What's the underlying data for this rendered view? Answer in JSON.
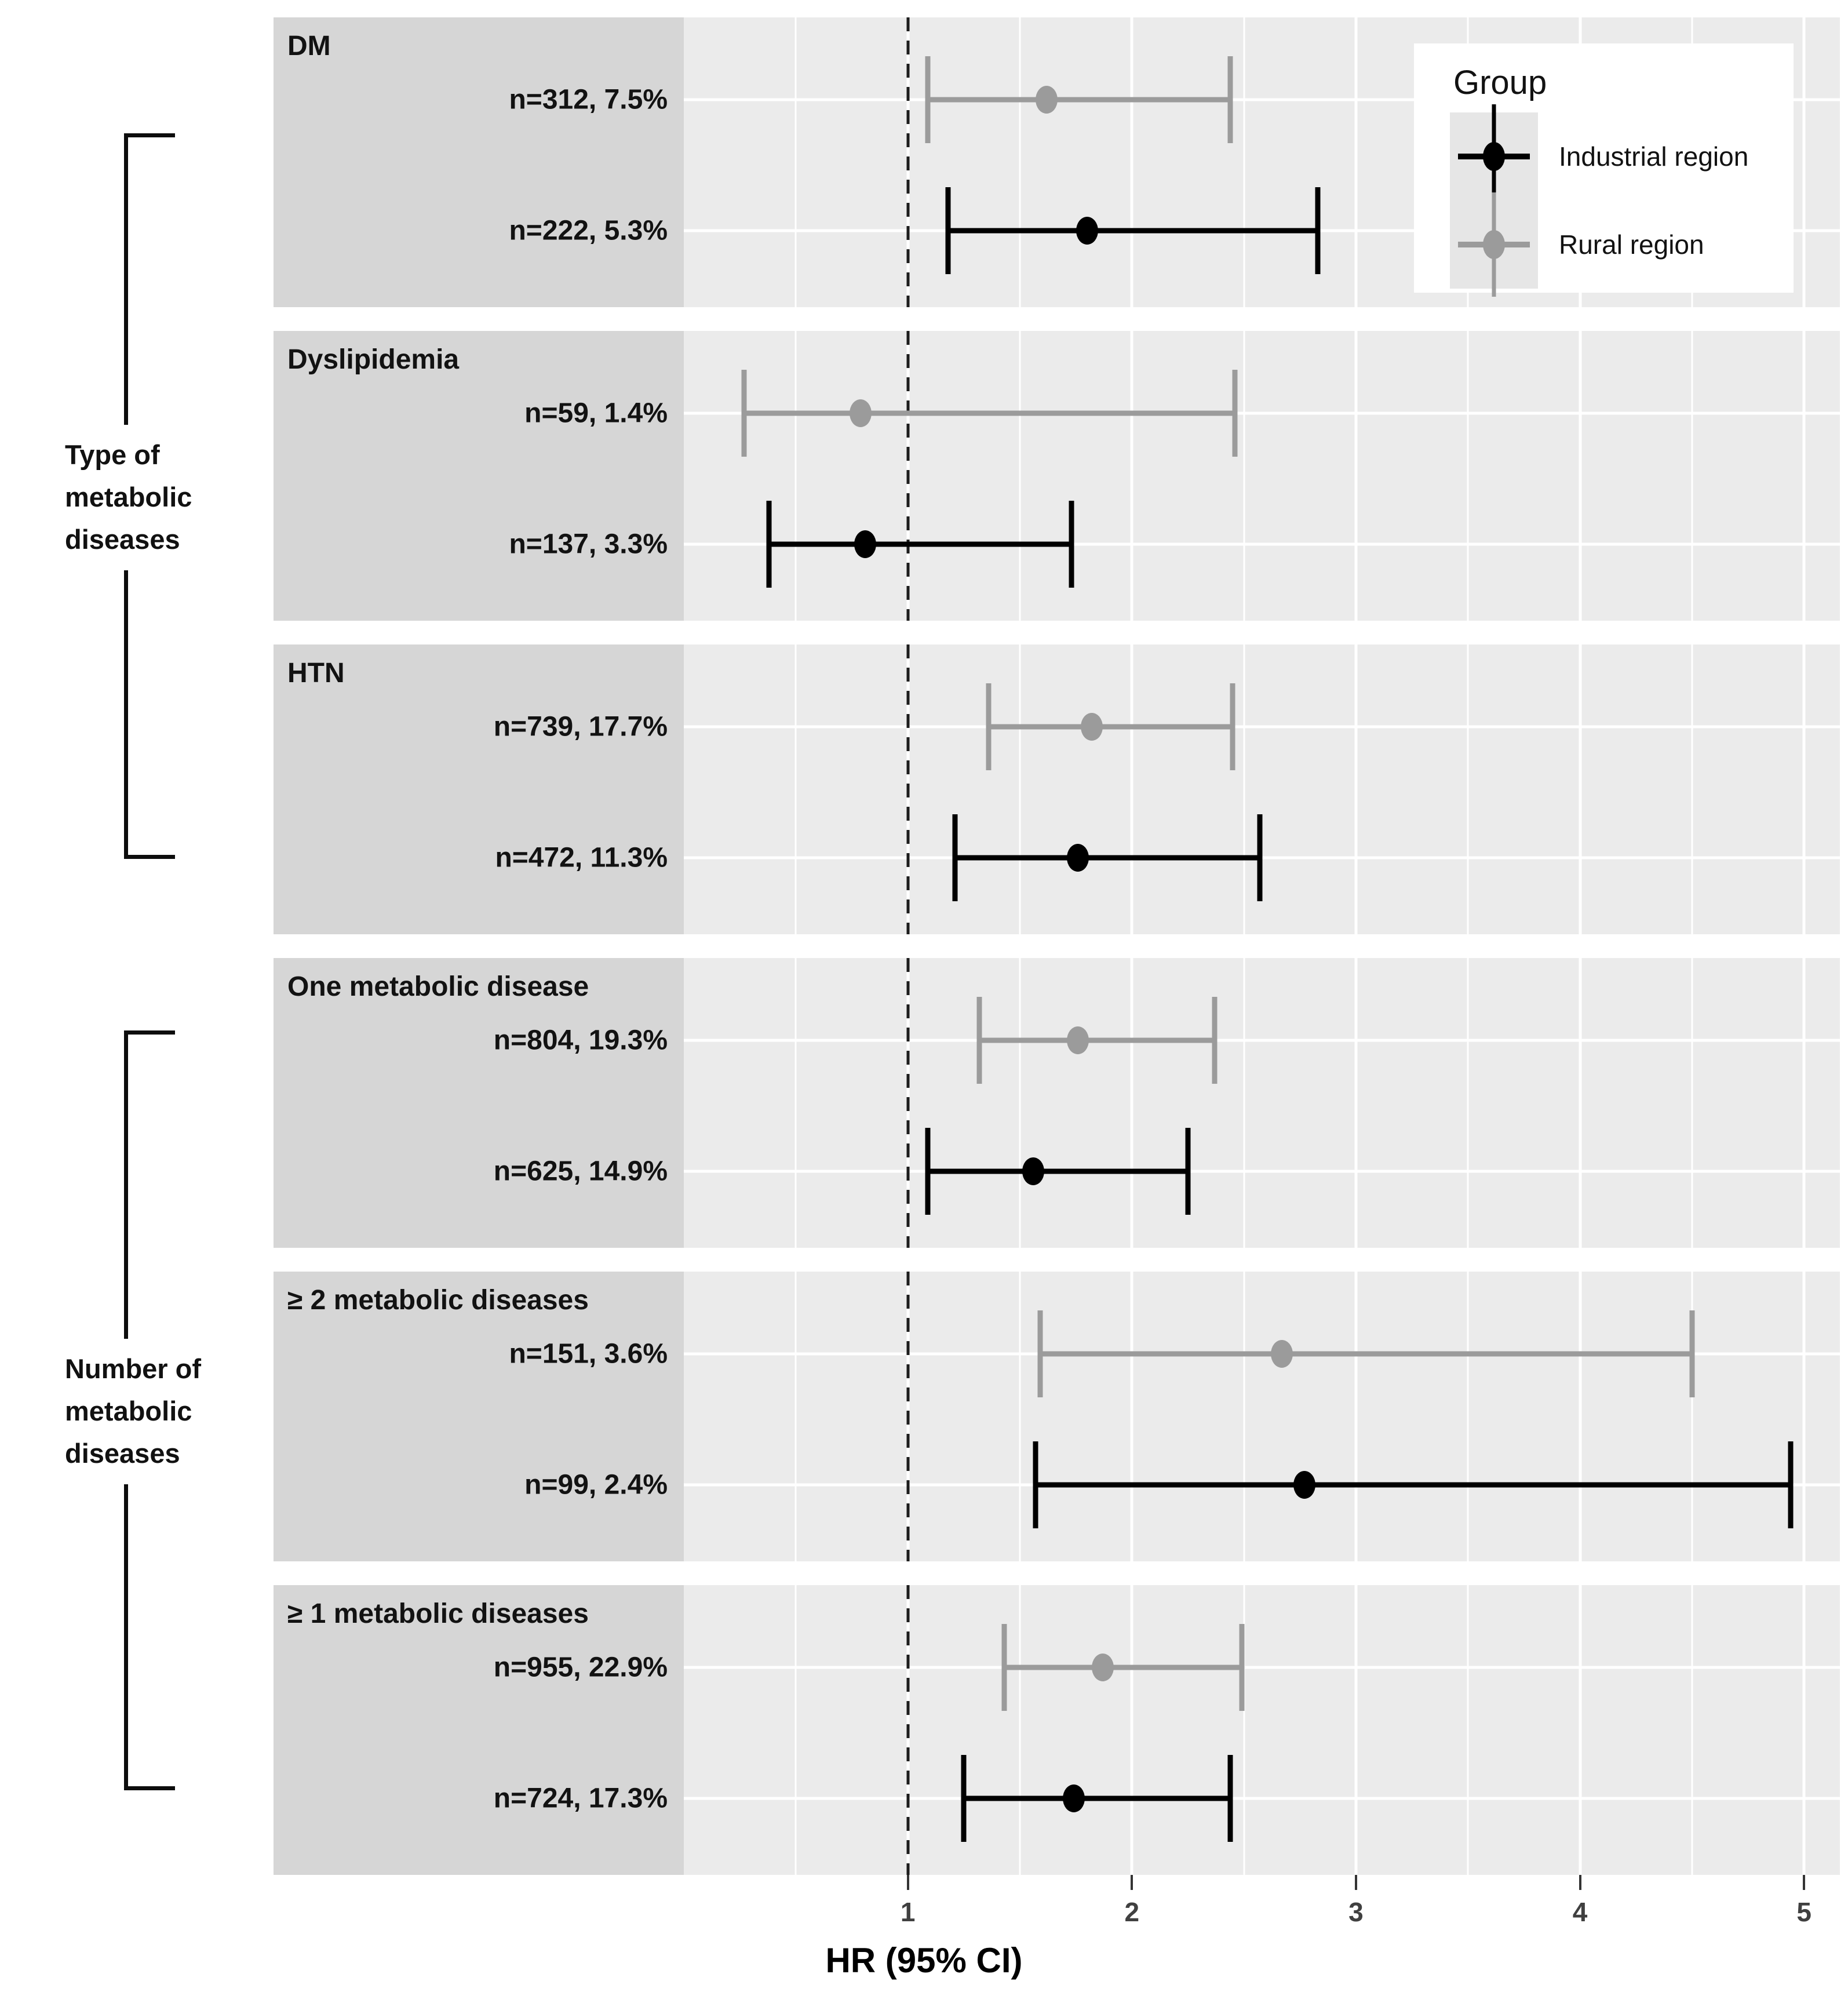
{
  "figure": {
    "legend": {
      "title": "Group",
      "items": [
        {
          "label": "Industrial region",
          "color": "#000000"
        },
        {
          "label": "Rural region",
          "color": "#9b9b9b"
        }
      ]
    },
    "brackets": [
      {
        "label": "Type of metabolic diseases",
        "lines": [
          "Type of",
          "metabolic",
          "diseases"
        ]
      },
      {
        "label": "Number of metabolic diseases",
        "lines": [
          "Number of",
          "metabolic",
          "diseases"
        ]
      }
    ],
    "colors": {
      "industrial": "#000000",
      "rural": "#9b9b9b",
      "panel_background": "#ebebeb",
      "strip_background": "#d6d6d6",
      "gridline": "#ffffff",
      "reference_line": "#1d1d1d"
    }
  },
  "chart_data": {
    "type": "scatter",
    "subtype": "forest-plot",
    "title": "",
    "xlabel": "HR (95% CI)",
    "ylabel": "",
    "xlim": [
      0,
      5.16
    ],
    "x_ticks": [
      1,
      2,
      3,
      4,
      5
    ],
    "x_minor": [
      0.5,
      1.5,
      2.5,
      3.5,
      4.5
    ],
    "reference_line_x": 1,
    "grid": true,
    "legend_position": "top-right-inset",
    "facets": [
      {
        "facet": "DM",
        "group_bracket": "Type of metabolic diseases",
        "series": [
          {
            "name": "Rural region",
            "n_label": "n=312, 7.5%",
            "hr": 1.62,
            "ci_low": 1.09,
            "ci_high": 2.44,
            "color": "#9b9b9b"
          },
          {
            "name": "Industrial region",
            "n_label": "n=222, 5.3%",
            "hr": 1.8,
            "ci_low": 1.18,
            "ci_high": 2.83,
            "color": "#000000"
          }
        ]
      },
      {
        "facet": "Dyslipidemia",
        "group_bracket": "Type of metabolic diseases",
        "series": [
          {
            "name": "Rural region",
            "n_label": "n=59, 1.4%",
            "hr": 0.79,
            "ci_low": 0.27,
            "ci_high": 2.46,
            "color": "#9b9b9b"
          },
          {
            "name": "Industrial region",
            "n_label": "n=137, 3.3%",
            "hr": 0.81,
            "ci_low": 0.38,
            "ci_high": 1.73,
            "color": "#000000"
          }
        ]
      },
      {
        "facet": "HTN",
        "group_bracket": "Type of metabolic diseases",
        "series": [
          {
            "name": "Rural region",
            "n_label": "n=739, 17.7%",
            "hr": 1.82,
            "ci_low": 1.36,
            "ci_high": 2.45,
            "color": "#9b9b9b"
          },
          {
            "name": "Industrial region",
            "n_label": "n=472, 11.3%",
            "hr": 1.76,
            "ci_low": 1.21,
            "ci_high": 2.57,
            "color": "#000000"
          }
        ]
      },
      {
        "facet": "One metabolic disease",
        "group_bracket": "Number of metabolic diseases",
        "series": [
          {
            "name": "Rural region",
            "n_label": "n=804, 19.3%",
            "hr": 1.76,
            "ci_low": 1.32,
            "ci_high": 2.37,
            "color": "#9b9b9b"
          },
          {
            "name": "Industrial region",
            "n_label": "n=625, 14.9%",
            "hr": 1.56,
            "ci_low": 1.09,
            "ci_high": 2.25,
            "color": "#000000"
          }
        ]
      },
      {
        "facet": "≥ 2 metabolic diseases",
        "group_bracket": "Number of metabolic diseases",
        "series": [
          {
            "name": "Rural region",
            "n_label": "n=151, 3.6%",
            "hr": 2.67,
            "ci_low": 1.59,
            "ci_high": 4.5,
            "color": "#9b9b9b"
          },
          {
            "name": "Industrial region",
            "n_label": "n=99, 2.4%",
            "hr": 2.77,
            "ci_low": 1.57,
            "ci_high": 4.94,
            "color": "#000000"
          }
        ]
      },
      {
        "facet": "≥ 1 metabolic diseases",
        "group_bracket": "Number of metabolic diseases",
        "series": [
          {
            "name": "Rural region",
            "n_label": "n=955, 22.9%",
            "hr": 1.87,
            "ci_low": 1.43,
            "ci_high": 2.49,
            "color": "#9b9b9b"
          },
          {
            "name": "Industrial region",
            "n_label": "n=724, 17.3%",
            "hr": 1.74,
            "ci_low": 1.25,
            "ci_high": 2.44,
            "color": "#000000"
          }
        ]
      }
    ]
  }
}
